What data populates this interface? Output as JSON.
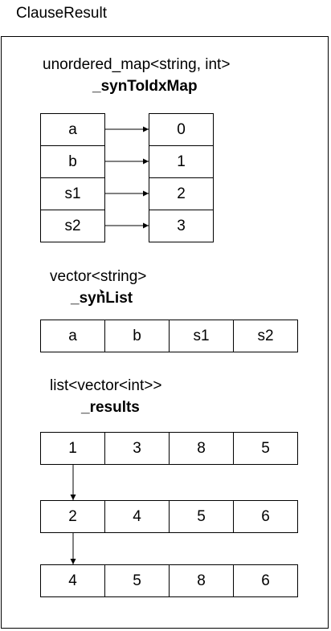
{
  "title": "ClauseResult",
  "map": {
    "type_label": "unordered_map<string, int>",
    "name": "_synToIdxMap",
    "keys": [
      "a",
      "b",
      "s1",
      "s2"
    ],
    "values": [
      "0",
      "1",
      "2",
      "3"
    ]
  },
  "synlist": {
    "type_label": "vector<string>",
    "name": "_synList",
    "items": [
      "a",
      "b",
      "s1",
      "s2"
    ]
  },
  "results": {
    "type_label": "list<vector<int>>",
    "name": "_results",
    "rows": [
      [
        "1",
        "3",
        "8",
        "5"
      ],
      [
        "2",
        "4",
        "5",
        "6"
      ],
      [
        "4",
        "5",
        "8",
        "6"
      ]
    ]
  }
}
